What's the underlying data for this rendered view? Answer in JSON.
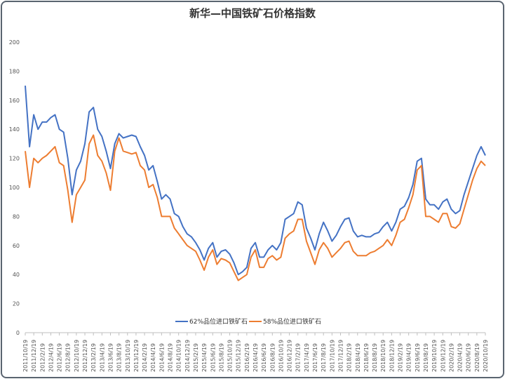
{
  "chart_data": {
    "type": "line",
    "title": "新华—中国铁矿石价格指数",
    "xlabel": "",
    "ylabel": "",
    "ylim": [
      0,
      200
    ],
    "yticks": [
      0,
      20,
      40,
      60,
      80,
      100,
      120,
      140,
      160,
      180,
      200
    ],
    "grid": false,
    "legend_position": "bottom",
    "xtick_labels": [
      "2011/10/19",
      "2011/12/19",
      "2012/2/19",
      "2012/4/19",
      "2012/6/19",
      "2012/8/19",
      "2012/10/19",
      "2012/12/19",
      "2013/2/19",
      "2013/4/19",
      "2013/6/19",
      "2013/8/19",
      "2013/10/19",
      "2013/12/19",
      "2014/2/19",
      "2014/4/19",
      "2014/6/19",
      "2014/8/19",
      "2014/10/19",
      "2014/12/19",
      "2015/2/19",
      "2015/4/19",
      "2015/6/19",
      "2015/8/19",
      "2015/10/19",
      "2015/12/19",
      "2016/2/19",
      "2016/4/19",
      "2016/6/19",
      "2016/8/19",
      "2016/10/19",
      "2016/12/19",
      "2017/2/19",
      "2017/4/19",
      "2017/6/19",
      "2017/8/19",
      "2017/10/19",
      "2017/12/19",
      "2018/2/19",
      "2018/4/19",
      "2018/6/19",
      "2018/8/19",
      "2018/10/19",
      "2018/12/19",
      "2019/2/19",
      "2019/4/19",
      "2019/6/19",
      "2019/8/19",
      "2019/10/19",
      "2019/12/19",
      "2020/2/19",
      "2020/4/19",
      "2020/6/19",
      "2020/8/19",
      "2020/10/19"
    ],
    "x_start": "2011/10",
    "x_step": "monthly",
    "series": [
      {
        "name": "62%品位进口铁矿石",
        "color": "#4472c4",
        "values": [
          170,
          128,
          150,
          140,
          145,
          145,
          148,
          150,
          140,
          138,
          120,
          95,
          112,
          118,
          130,
          152,
          155,
          140,
          135,
          125,
          113,
          130,
          137,
          134,
          135,
          136,
          135,
          128,
          122,
          112,
          115,
          104,
          92,
          95,
          92,
          82,
          80,
          73,
          68,
          66,
          62,
          57,
          50,
          58,
          62,
          52,
          56,
          57,
          54,
          48,
          40,
          42,
          45,
          58,
          62,
          52,
          52,
          57,
          60,
          57,
          62,
          78,
          80,
          82,
          90,
          88,
          72,
          65,
          57,
          68,
          76,
          70,
          63,
          67,
          73,
          78,
          79,
          70,
          66,
          67,
          66,
          66,
          68,
          69,
          73,
          76,
          70,
          76,
          85,
          87,
          93,
          102,
          118,
          120,
          92,
          88,
          88,
          85,
          90,
          92,
          85,
          82,
          84,
          95,
          104,
          113,
          122,
          128,
          122
        ]
      },
      {
        "name": "58%品位进口铁矿石",
        "color": "#ed7d31",
        "values": [
          125,
          100,
          120,
          117,
          120,
          122,
          125,
          128,
          117,
          115,
          98,
          76,
          95,
          100,
          105,
          130,
          136,
          122,
          118,
          110,
          98,
          125,
          134,
          125,
          124,
          123,
          124,
          115,
          112,
          100,
          102,
          93,
          80,
          80,
          80,
          72,
          68,
          64,
          60,
          58,
          56,
          50,
          43,
          52,
          57,
          47,
          51,
          50,
          48,
          42,
          36,
          38,
          40,
          52,
          57,
          45,
          45,
          51,
          53,
          50,
          52,
          65,
          68,
          70,
          78,
          78,
          63,
          55,
          47,
          57,
          62,
          58,
          52,
          55,
          58,
          62,
          63,
          56,
          53,
          53,
          53,
          55,
          56,
          58,
          60,
          64,
          60,
          67,
          76,
          78,
          86,
          95,
          112,
          115,
          80,
          80,
          78,
          76,
          82,
          82,
          73,
          72,
          75,
          85,
          95,
          105,
          113,
          118,
          115
        ]
      }
    ]
  }
}
